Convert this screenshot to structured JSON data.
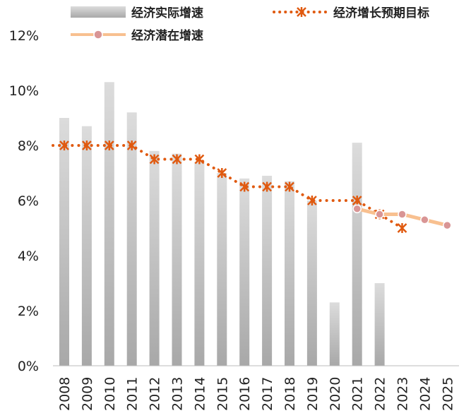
{
  "chart_data": {
    "type": "bar+line",
    "categories": [
      "2008",
      "2009",
      "2010",
      "2011",
      "2012",
      "2013",
      "2014",
      "2015",
      "2016",
      "2017",
      "2018",
      "2019",
      "2020",
      "2021",
      "2022",
      "2023",
      "2024",
      "2025"
    ],
    "series": [
      {
        "name": "经济实际增速",
        "kind": "bar",
        "color": "#c8c8c8",
        "values": [
          9.0,
          8.7,
          10.3,
          9.2,
          7.8,
          7.7,
          7.4,
          7.0,
          6.8,
          6.9,
          6.7,
          6.0,
          2.3,
          8.1,
          3.0,
          null,
          null,
          null
        ]
      },
      {
        "name": "经济增长预期目标",
        "kind": "dotted-line",
        "color": "#e05a10",
        "marker": "asterisk",
        "values": [
          8.0,
          8.0,
          8.0,
          8.0,
          7.5,
          7.5,
          7.5,
          7.0,
          6.5,
          6.5,
          6.5,
          6.0,
          null,
          6.0,
          5.5,
          5.0,
          null,
          null
        ]
      },
      {
        "name": "经济潜在增速",
        "kind": "line",
        "color": "#f8c090",
        "marker_color": "#d99595",
        "values": [
          null,
          null,
          null,
          null,
          null,
          null,
          null,
          null,
          null,
          null,
          null,
          null,
          null,
          5.7,
          5.5,
          5.5,
          5.3,
          5.1
        ]
      }
    ],
    "y_ticks": [
      "0%",
      "2%",
      "4%",
      "6%",
      "8%",
      "10%",
      "12%"
    ],
    "ylim": [
      0,
      12
    ],
    "grid": false,
    "legend": "top"
  }
}
